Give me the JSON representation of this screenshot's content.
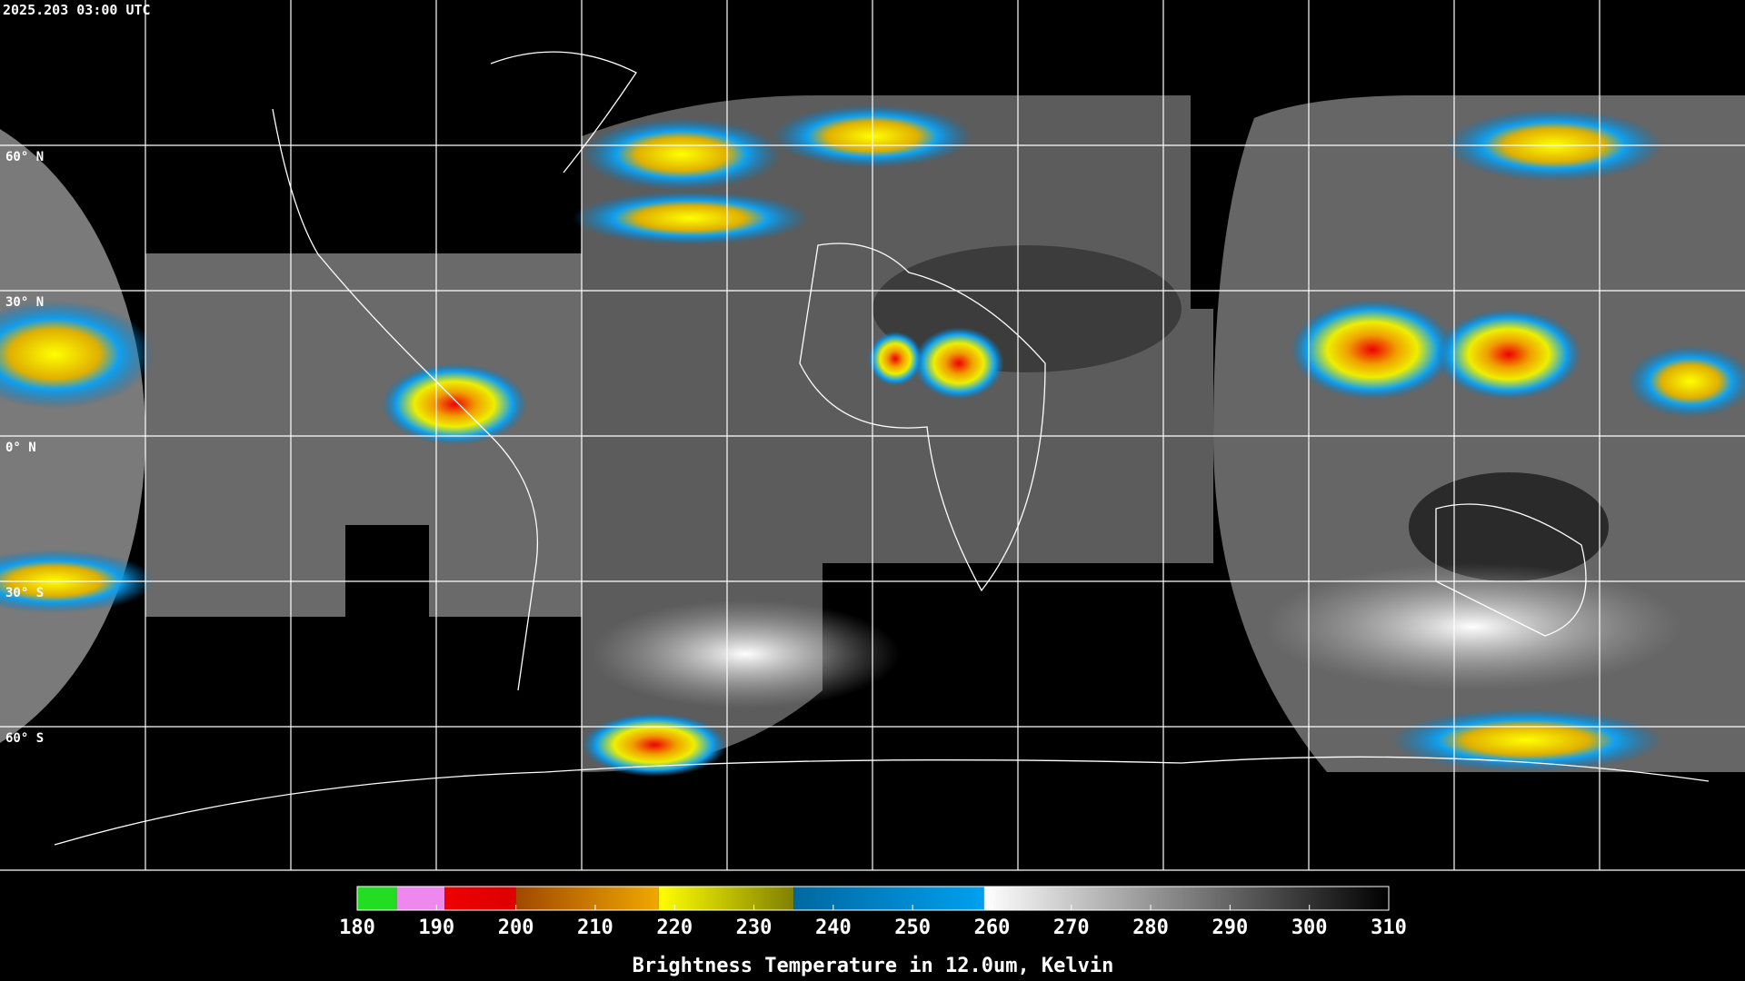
{
  "header": {
    "timestamp": "2025.203 03:00 UTC"
  },
  "lat_labels": [
    "60° N",
    "30° N",
    "0° N",
    "30° S",
    "60° S"
  ],
  "colorbar": {
    "title": "Brightness Temperature in 12.0um, Kelvin",
    "lim": [
      180,
      310
    ],
    "ticks": [
      180,
      190,
      200,
      210,
      220,
      230,
      240,
      250,
      260,
      270,
      280,
      290,
      300,
      310
    ],
    "segments": [
      {
        "from": 180,
        "to": 185,
        "colors": [
          "#22dd22",
          "#22dd22"
        ]
      },
      {
        "from": 185,
        "to": 191,
        "colors": [
          "#ee88ee",
          "#ee88ee"
        ]
      },
      {
        "from": 191,
        "to": 200,
        "colors": [
          "#ee0000",
          "#dd0000"
        ]
      },
      {
        "from": 200,
        "to": 218,
        "colors": [
          "#a04800",
          "#f0a800"
        ]
      },
      {
        "from": 218,
        "to": 235,
        "colors": [
          "#ffff00",
          "#808000"
        ]
      },
      {
        "from": 235,
        "to": 259,
        "colors": [
          "#0068a0",
          "#00a0f0"
        ]
      },
      {
        "from": 259,
        "to": 310,
        "colors": [
          "#ffffff",
          "#000000"
        ]
      }
    ]
  }
}
